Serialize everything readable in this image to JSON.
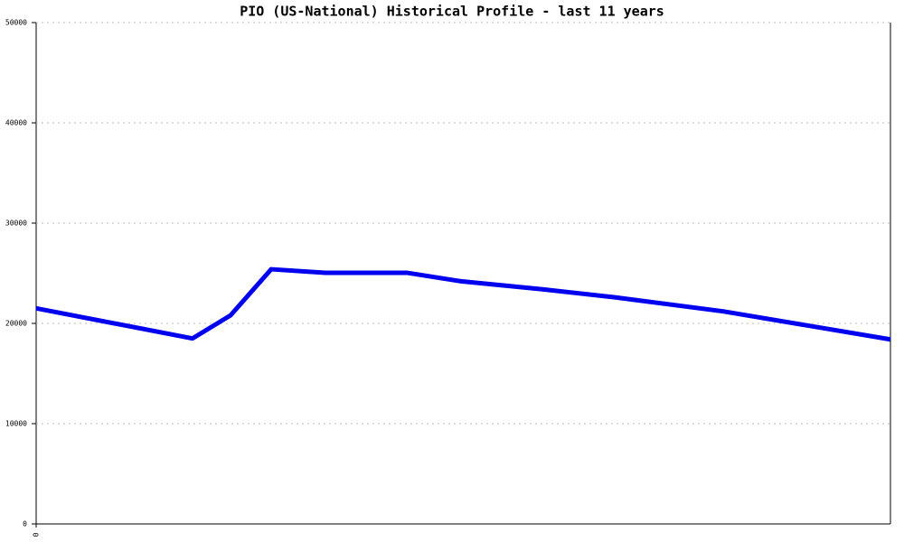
{
  "chart_data": {
    "type": "line",
    "title": "PIO (US-National) Historical Profile - last 11 years",
    "x": [
      0,
      173,
      215,
      260,
      320,
      410,
      470,
      560,
      640,
      760,
      945
    ],
    "series": [
      {
        "color": "#0000ee",
        "values": [
          21500,
          18500,
          20800,
          25400,
          25050,
          25050,
          24200,
          23400,
          22600,
          21200,
          18400
        ]
      }
    ],
    "xlim": [
      0,
      945
    ],
    "xticks": [
      0
    ],
    "ylim": [
      0,
      50000
    ],
    "yticks": [
      0,
      10000,
      20000,
      30000,
      40000,
      50000
    ],
    "grid": true
  }
}
